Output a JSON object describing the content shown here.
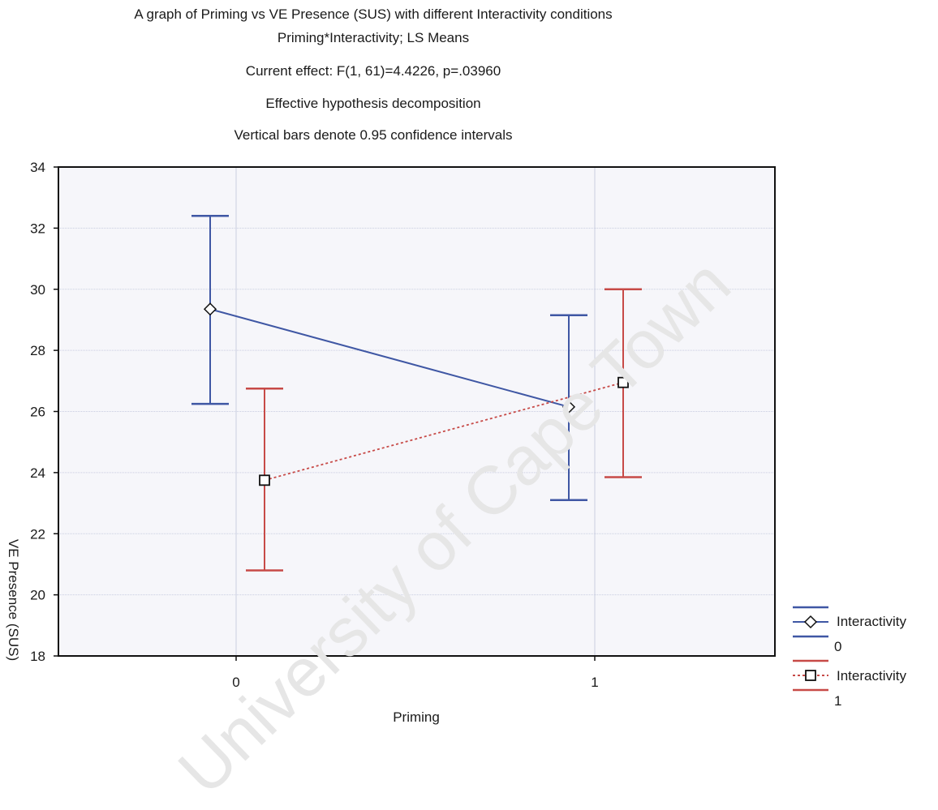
{
  "chart_data": {
    "type": "line",
    "title_lines": [
      "A graph of Priming vs VE Presence (SUS) with different Interactivity conditions",
      "Priming*Interactivity; LS Means",
      "Current effect: F(1, 61)=4.4226, p=.03960",
      "Effective hypothesis decomposition",
      "Vertical bars denote 0.95 confidence intervals"
    ],
    "xlabel": "Priming",
    "ylabel": "VE Presence (SUS)",
    "categories": [
      "0",
      "1"
    ],
    "ylim": [
      18,
      34
    ],
    "yticks": [
      18,
      20,
      22,
      24,
      26,
      28,
      30,
      32,
      34
    ],
    "grid": true,
    "legend_position": "right",
    "series": [
      {
        "legend_name": "Interactivity",
        "legend_level": "0",
        "values": [
          29.35,
          26.15
        ],
        "ci_low": [
          26.25,
          23.1
        ],
        "ci_high": [
          32.4,
          29.15
        ],
        "color": "#3f57a4",
        "line_style": "solid",
        "marker": "diamond"
      },
      {
        "legend_name": "Interactivity",
        "legend_level": "1",
        "values": [
          23.75,
          26.95
        ],
        "ci_low": [
          20.8,
          23.85
        ],
        "ci_high": [
          26.75,
          30.0
        ],
        "color": "#c74a47",
        "line_style": "dotted",
        "marker": "square"
      }
    ],
    "watermark": "University of Cape Town"
  },
  "colors": {
    "plot_bg": "#f6f6fa",
    "grid": "#c9cde0",
    "axis": "#111111"
  }
}
